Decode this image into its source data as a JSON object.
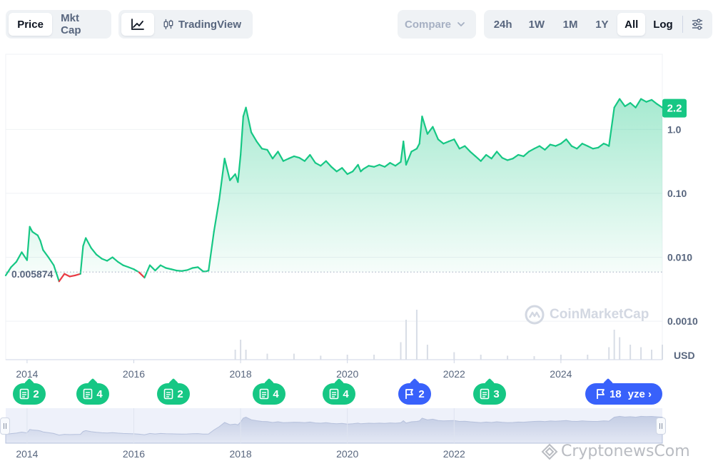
{
  "toolbar": {
    "type_tabs": [
      "Price",
      "Mkt Cap"
    ],
    "active_type": "Price",
    "view_tradingview_label": "TradingView",
    "compare_label": "Compare",
    "ranges": [
      "24h",
      "1W",
      "1M",
      "1Y",
      "All"
    ],
    "active_range": "All",
    "log_label": "Log"
  },
  "chart_data": {
    "type": "line",
    "scale": "log",
    "currency_label": "USD",
    "y_ticks": [
      "1.0",
      "0.10",
      "0.010",
      "0.0010"
    ],
    "y_tick_values": [
      1.0,
      0.1,
      0.01,
      0.001
    ],
    "current_price_label": "2.2",
    "current_price": 2.2,
    "baseline_label": "0.005874",
    "baseline_value": 0.005874,
    "x_ticks": [
      "2014",
      "2016",
      "2018",
      "2020",
      "2022",
      "2024"
    ],
    "x_range": [
      2013.6,
      2025.9
    ],
    "ylim": [
      0.00025,
      15
    ],
    "grid": true,
    "colors": {
      "up": "#16c784",
      "down": "#ea3943",
      "fill_top": "#16c784"
    },
    "series": [
      {
        "x": [
          2013.6,
          2013.7,
          2013.8,
          2013.9,
          2014.0,
          2014.05,
          2014.1,
          2014.2,
          2014.25,
          2014.3,
          2014.4,
          2014.5,
          2014.6,
          2014.7,
          2014.8,
          2014.9,
          2015.0,
          2015.05,
          2015.1,
          2015.2,
          2015.3,
          2015.4,
          2015.5,
          2015.6,
          2015.7,
          2015.8,
          2015.9,
          2016.0,
          2016.1,
          2016.2,
          2016.3,
          2016.4,
          2016.5,
          2016.6,
          2016.7,
          2016.8,
          2016.9,
          2017.0,
          2017.1,
          2017.2,
          2017.3,
          2017.35,
          2017.4,
          2017.5,
          2017.6,
          2017.7,
          2017.8,
          2017.9,
          2017.95,
          2018.0,
          2018.05,
          2018.1,
          2018.2,
          2018.3,
          2018.4,
          2018.5,
          2018.6,
          2018.7,
          2018.8,
          2018.9,
          2019.0,
          2019.1,
          2019.2,
          2019.3,
          2019.4,
          2019.5,
          2019.6,
          2019.7,
          2019.8,
          2019.9,
          2020.0,
          2020.1,
          2020.2,
          2020.25,
          2020.3,
          2020.4,
          2020.5,
          2020.6,
          2020.7,
          2020.8,
          2020.9,
          2021.0,
          2021.05,
          2021.1,
          2021.2,
          2021.3,
          2021.35,
          2021.4,
          2021.5,
          2021.6,
          2021.7,
          2021.8,
          2021.9,
          2022.0,
          2022.1,
          2022.2,
          2022.3,
          2022.4,
          2022.5,
          2022.6,
          2022.7,
          2022.8,
          2022.9,
          2023.0,
          2023.1,
          2023.2,
          2023.3,
          2023.4,
          2023.5,
          2023.6,
          2023.7,
          2023.8,
          2023.9,
          2024.0,
          2024.1,
          2024.2,
          2024.3,
          2024.4,
          2024.5,
          2024.6,
          2024.7,
          2024.8,
          2024.85,
          2024.9,
          2025.0,
          2025.1,
          2025.2,
          2025.3,
          2025.4,
          2025.5,
          2025.6,
          2025.7,
          2025.8,
          2025.9
        ],
        "y": [
          0.0052,
          0.007,
          0.0085,
          0.012,
          0.009,
          0.03,
          0.025,
          0.022,
          0.018,
          0.013,
          0.01,
          0.0075,
          0.0042,
          0.0055,
          0.005,
          0.0052,
          0.0055,
          0.015,
          0.02,
          0.014,
          0.011,
          0.0095,
          0.0088,
          0.01,
          0.0085,
          0.0075,
          0.007,
          0.0065,
          0.0058,
          0.0048,
          0.0075,
          0.0062,
          0.0075,
          0.0068,
          0.0065,
          0.0062,
          0.0061,
          0.0063,
          0.0068,
          0.007,
          0.006,
          0.006,
          0.0062,
          0.025,
          0.08,
          0.35,
          0.16,
          0.2,
          0.15,
          0.4,
          1.6,
          2.2,
          0.9,
          0.65,
          0.5,
          0.48,
          0.35,
          0.45,
          0.32,
          0.35,
          0.38,
          0.36,
          0.32,
          0.4,
          0.3,
          0.27,
          0.32,
          0.26,
          0.22,
          0.25,
          0.2,
          0.22,
          0.28,
          0.22,
          0.24,
          0.27,
          0.26,
          0.28,
          0.26,
          0.3,
          0.27,
          0.31,
          0.65,
          0.28,
          0.45,
          0.5,
          0.6,
          1.6,
          0.85,
          1.1,
          0.7,
          0.6,
          0.65,
          0.7,
          0.5,
          0.55,
          0.45,
          0.38,
          0.32,
          0.4,
          0.35,
          0.45,
          0.36,
          0.33,
          0.35,
          0.4,
          0.38,
          0.45,
          0.5,
          0.55,
          0.48,
          0.58,
          0.55,
          0.6,
          0.7,
          0.55,
          0.5,
          0.6,
          0.55,
          0.5,
          0.52,
          0.6,
          0.58,
          0.55,
          2.2,
          3.0,
          2.3,
          2.6,
          2.2,
          3.0,
          2.7,
          2.9,
          2.5,
          2.2
        ]
      }
    ],
    "volume": {
      "x": [
        2017.9,
        2018.0,
        2018.1,
        2018.5,
        2019.0,
        2019.5,
        2020.0,
        2020.5,
        2021.0,
        2021.1,
        2021.3,
        2021.5,
        2022.0,
        2022.5,
        2023.0,
        2023.5,
        2024.0,
        2024.5,
        2024.9,
        2025.0,
        2025.1,
        2025.3,
        2025.5,
        2025.7,
        2025.9
      ],
      "y": [
        0.2,
        0.4,
        0.2,
        0.12,
        0.12,
        0.08,
        0.1,
        0.1,
        0.35,
        0.8,
        1.0,
        0.3,
        0.15,
        0.1,
        0.08,
        0.07,
        0.1,
        0.1,
        0.25,
        0.6,
        0.45,
        0.3,
        0.25,
        0.2,
        0.3
      ]
    }
  },
  "events": [
    {
      "kind": "news",
      "count": "2",
      "color": "green"
    },
    {
      "kind": "news",
      "count": "4",
      "color": "green"
    },
    {
      "kind": "news",
      "count": "2",
      "color": "green"
    },
    {
      "kind": "news",
      "count": "4",
      "color": "green"
    },
    {
      "kind": "news",
      "count": "4",
      "color": "green"
    },
    {
      "kind": "flag",
      "count": "2",
      "color": "blue"
    },
    {
      "kind": "news",
      "count": "3",
      "color": "green"
    },
    {
      "kind": "flag",
      "count": "18",
      "color": "blue"
    }
  ],
  "analyze_label": "yze",
  "navigator": {
    "x_ticks": [
      "2014",
      "2016",
      "2018",
      "2020",
      "2022"
    ]
  },
  "watermarks": {
    "cmc": "CoinMarketCap",
    "crypto_news": "CryptonewsCom"
  }
}
